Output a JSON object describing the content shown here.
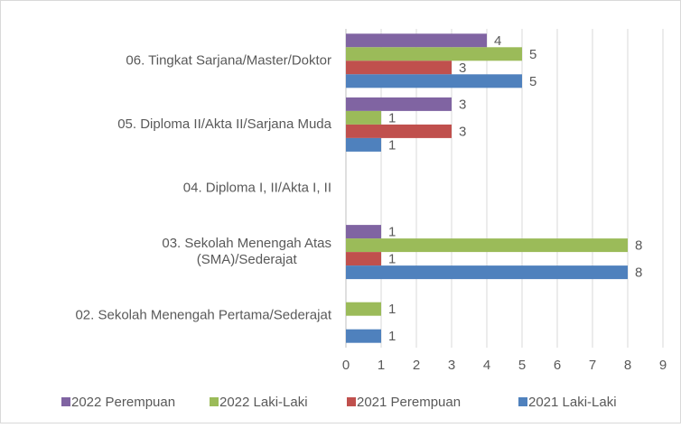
{
  "chart_data": {
    "type": "bar",
    "orientation": "horizontal",
    "categories": [
      "02. Sekolah Menengah Pertama/Sederajat",
      "03. Sekolah Menengah Atas (SMA)/Sederajat",
      "04. Diploma I, II/Akta I, II",
      "05. Diploma II/Akta II/Sarjana Muda",
      "06. Tingkat Sarjana/Master/Doktor"
    ],
    "series": [
      {
        "name": "2022 Perempuan",
        "color": "#8064a2",
        "values": [
          null,
          1,
          null,
          3,
          4
        ]
      },
      {
        "name": "2022 Laki-Laki",
        "color": "#9bbb59",
        "values": [
          1,
          8,
          null,
          1,
          5
        ]
      },
      {
        "name": "2021 Perempuan",
        "color": "#c0504d",
        "values": [
          null,
          1,
          null,
          3,
          3
        ]
      },
      {
        "name": "2021 Laki-Laki",
        "color": "#4f81bd",
        "values": [
          1,
          8,
          null,
          1,
          5
        ]
      }
    ],
    "xlim": [
      0,
      9
    ],
    "xticks": [
      0,
      1,
      2,
      3,
      4,
      5,
      6,
      7,
      8,
      9
    ],
    "grid": true,
    "legend": "bottom"
  }
}
